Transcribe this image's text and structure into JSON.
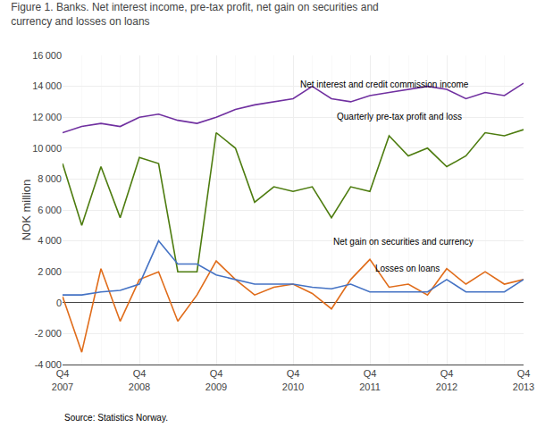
{
  "chart_data": {
    "type": "line",
    "title": "Figure 1. Banks. Net interest income, pre-tax profit, net gain on securities and\ncurrency and losses on loans",
    "y_label": "NOK million",
    "categories": [
      "Q4\n2007",
      null,
      null,
      null,
      "Q4\n2008",
      null,
      null,
      null,
      "Q4\n2009",
      null,
      null,
      null,
      "Q4\n2010",
      null,
      null,
      null,
      "Q4\n2011",
      null,
      null,
      null,
      "Q4\n2012",
      null,
      null,
      null,
      "Q4\n2013"
    ],
    "series": [
      {
        "name": "Net interest and credit commission income",
        "color": "#7030a0",
        "values": [
          11000,
          11400,
          11600,
          11400,
          12000,
          12200,
          11800,
          11600,
          12000,
          12500,
          12800,
          13000,
          13200,
          14000,
          13200,
          13000,
          13400,
          13600,
          13800,
          14000,
          13800,
          13200,
          13600,
          13400,
          14200
        ]
      },
      {
        "name": "Quarterly pre-tax profit and loss",
        "color": "#4d7c0f",
        "values": [
          9000,
          5000,
          8800,
          5500,
          9400,
          9000,
          2000,
          2000,
          11000,
          10000,
          6500,
          7500,
          7200,
          7500,
          5500,
          7500,
          7200,
          10800,
          9500,
          10000,
          8800,
          9500,
          11000,
          10800,
          11200
        ]
      },
      {
        "name": "Net gain on securities and currency",
        "color": "#e06c1a",
        "values": [
          400,
          -3200,
          2200,
          -1200,
          1500,
          2000,
          -1200,
          500,
          2700,
          1500,
          500,
          1000,
          1200,
          600,
          -400,
          1500,
          2800,
          1000,
          1200,
          500,
          2200,
          1200,
          2000,
          1200,
          1500
        ]
      },
      {
        "name": "Losses on loans",
        "color": "#4472c4",
        "values": [
          500,
          500,
          700,
          800,
          1200,
          4000,
          2500,
          2500,
          1800,
          1500,
          1200,
          1200,
          1200,
          1000,
          900,
          1200,
          700,
          700,
          700,
          700,
          1500,
          700,
          700,
          700,
          1500
        ]
      }
    ],
    "annotations": [
      {
        "text": "Net interest and credit commission income",
        "x": 12.3,
        "y": 13700
      },
      {
        "text": "Quarterly pre-tax profit and loss",
        "x": 14.2,
        "y": 11600
      },
      {
        "text": "Net gain on securities and currency",
        "x": 14.0,
        "y": 3500
      },
      {
        "text": "Losses on loans",
        "x": 16.2,
        "y": 1800
      },
      {
        "text": "Source: Statistics Norway."
      }
    ],
    "ylim": [
      -4000,
      16000
    ],
    "yticks": [
      {
        "value": -4000,
        "label": "-4 000"
      },
      {
        "value": -2000,
        "label": "-2 000"
      },
      0,
      {
        "value": 2000,
        "label": "2 000"
      },
      {
        "value": 4000,
        "label": "4 000"
      },
      {
        "value": 6000,
        "label": "6 000"
      },
      {
        "value": 8000,
        "label": "8 000"
      },
      {
        "value": 10000,
        "label": "10 000"
      },
      {
        "value": 12000,
        "label": "12 000"
      },
      {
        "value": 14000,
        "label": "14 000"
      },
      {
        "value": 16000,
        "label": "16 000"
      }
    ],
    "grid": true
  }
}
